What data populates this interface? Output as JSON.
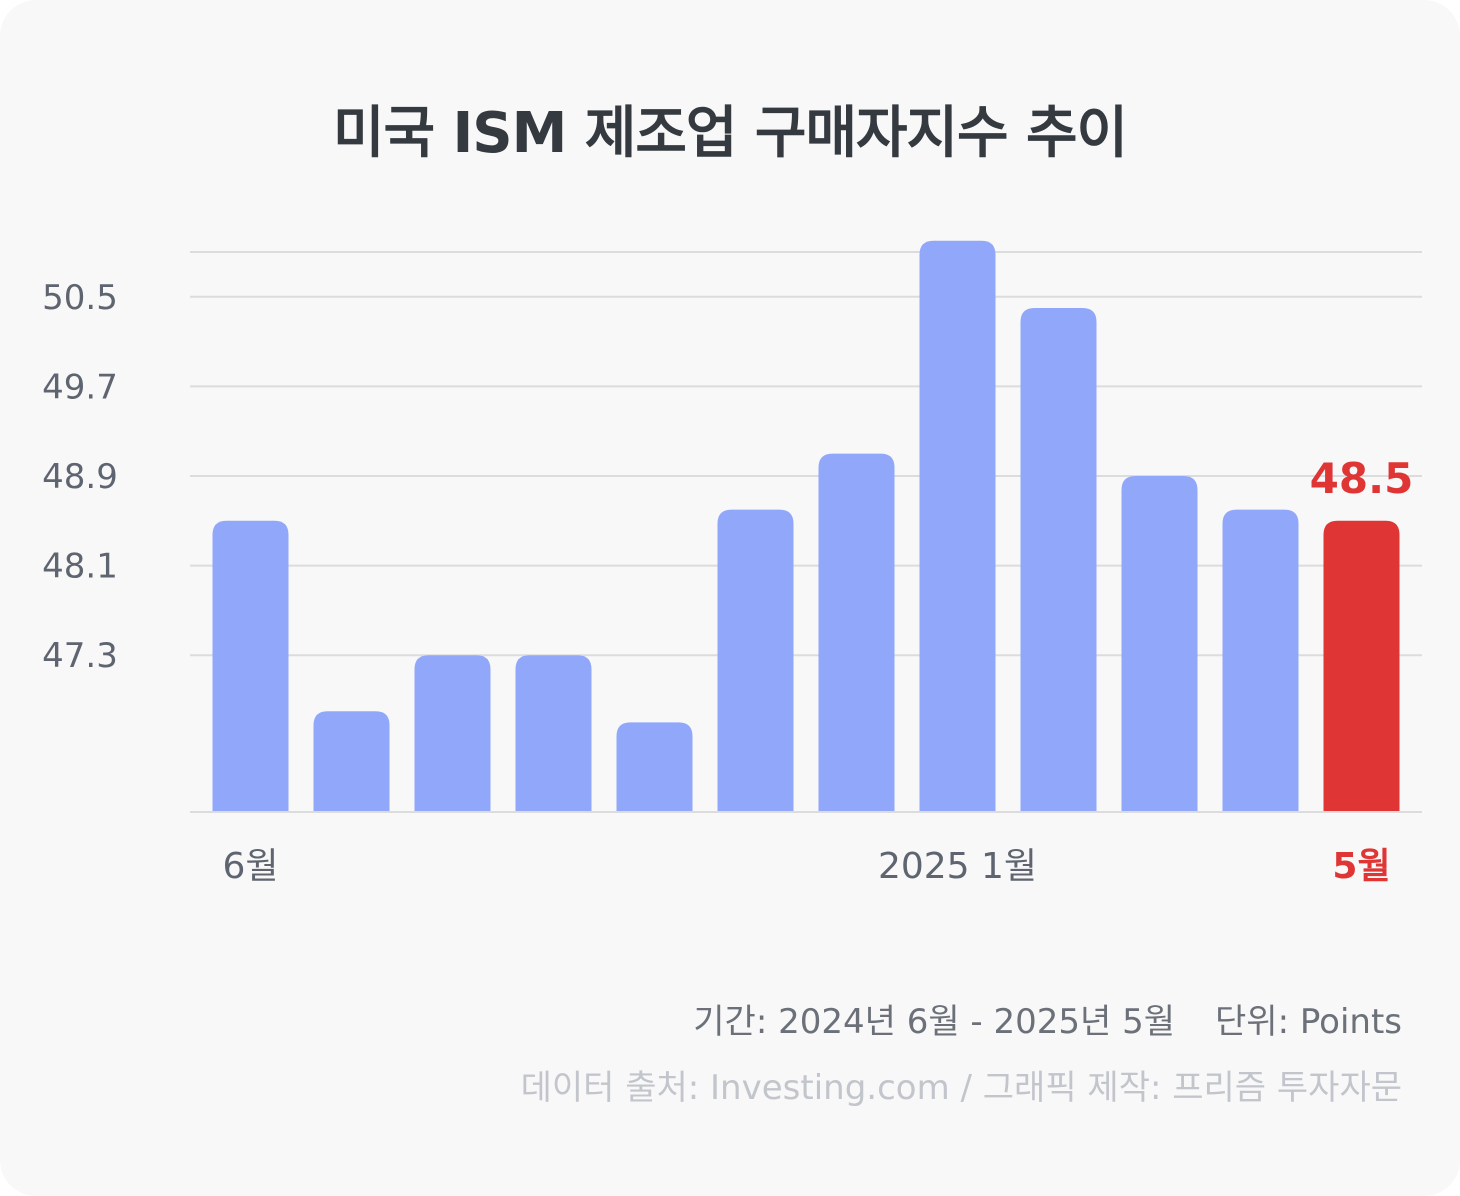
{
  "title": "미국 ISM 제조업 구매자지수 추이",
  "footer": {
    "period": "기간: 2024년 6월 - 2025년 5월",
    "unit": "단위: Points",
    "source": "데이터 출처: Investing.com / 그래픽 제작: 프리즘 투자자문"
  },
  "colors": {
    "bar": "#91a8fa",
    "highlight": "#e03535",
    "grid": "#dcdcdc"
  },
  "chart_data": {
    "type": "bar",
    "title": "미국 ISM 제조업 구매자지수 추이",
    "categories": [
      "2024-06",
      "2024-07",
      "2024-08",
      "2024-09",
      "2024-10",
      "2024-11",
      "2024-12",
      "2025-01",
      "2025-02",
      "2025-03",
      "2025-04",
      "2025-05"
    ],
    "values": [
      48.5,
      46.8,
      47.3,
      47.3,
      46.7,
      48.6,
      49.1,
      51.0,
      50.4,
      48.9,
      48.6,
      48.5
    ],
    "highlight_index": 11,
    "highlight_label": "48.5",
    "x_tick_labels": [
      {
        "index": 0,
        "label": "6월"
      },
      {
        "index": 7,
        "label": "2025 1월"
      },
      {
        "index": 11,
        "label": "5월",
        "highlight": true
      }
    ],
    "y_ticks": [
      47.3,
      48.1,
      48.9,
      49.7,
      50.5
    ],
    "y_tick_labels": [
      "47.3",
      "48.1",
      "48.9",
      "49.7",
      "50.5"
    ],
    "ylim": [
      45.9,
      50.9
    ],
    "grid": true,
    "legend": "none"
  }
}
